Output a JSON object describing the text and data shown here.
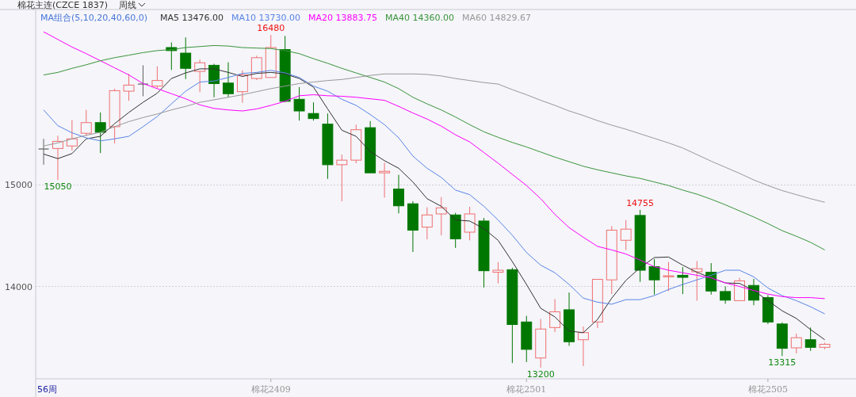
{
  "chart_data": {
    "type": "candlestick",
    "title": "棉花主连(CZCE 1837)",
    "subtitle": "周线",
    "legend_title": "MA组合(5,10,20,40,60,0)",
    "legend": "top left",
    "grid": "y",
    "ylim": [
      13090,
      16730
    ],
    "yticks": [
      14000,
      15000
    ],
    "categories": [
      null,
      null,
      null,
      null,
      null,
      null,
      null,
      null,
      null,
      null,
      null,
      null,
      null,
      null,
      null,
      null,
      "棉花2409",
      null,
      null,
      null,
      null,
      null,
      null,
      null,
      null,
      null,
      null,
      null,
      null,
      null,
      null,
      null,
      null,
      null,
      "棉花2501",
      null,
      null,
      null,
      null,
      null,
      null,
      null,
      null,
      null,
      null,
      null,
      null,
      null,
      null,
      null,
      null,
      "棉花2505",
      null,
      null,
      null,
      null
    ],
    "ohlc": [
      [
        15355,
        15455,
        15200,
        15355
      ],
      [
        15360,
        15485,
        15050,
        15430
      ],
      [
        15385,
        15640,
        15340,
        15455
      ],
      [
        15510,
        15740,
        15485,
        15615
      ],
      [
        15615,
        15715,
        15315,
        15520
      ],
      [
        15575,
        15950,
        15410,
        15930
      ],
      [
        15925,
        16095,
        15830,
        15985
      ],
      [
        15995,
        16180,
        15875,
        15995
      ],
      [
        15975,
        16170,
        15950,
        16030
      ],
      [
        16355,
        16405,
        16135,
        16325
      ],
      [
        16300,
        16455,
        16045,
        16150
      ],
      [
        16120,
        16235,
        15915,
        16205
      ],
      [
        16180,
        16195,
        15865,
        16000
      ],
      [
        16005,
        16210,
        15865,
        15900
      ],
      [
        15920,
        16130,
        15810,
        16085
      ],
      [
        16050,
        16275,
        16035,
        16255
      ],
      [
        16060,
        16480,
        16060,
        16355
      ],
      [
        16335,
        16470,
        15815,
        15825
      ],
      [
        15845,
        15965,
        15635,
        15730
      ],
      [
        15705,
        15815,
        15635,
        15655
      ],
      [
        15600,
        15705,
        15060,
        15200
      ],
      [
        15200,
        15300,
        14840,
        15245
      ],
      [
        15245,
        15595,
        15215,
        15545
      ],
      [
        15565,
        15630,
        15120,
        15120
      ],
      [
        15120,
        15220,
        14875,
        15135
      ],
      [
        14960,
        15100,
        14720,
        14795
      ],
      [
        14815,
        14840,
        14340,
        14555
      ],
      [
        14585,
        14780,
        14465,
        14705
      ],
      [
        14715,
        14880,
        14505,
        14775
      ],
      [
        14705,
        14725,
        14380,
        14470
      ],
      [
        14535,
        14785,
        14455,
        14715
      ],
      [
        14645,
        14675,
        13990,
        14155
      ],
      [
        14140,
        14240,
        14030,
        14160
      ],
      [
        14165,
        14185,
        13245,
        13625
      ],
      [
        13650,
        13710,
        13255,
        13380
      ],
      [
        13295,
        13680,
        13200,
        13580
      ],
      [
        13595,
        13875,
        13550,
        13750
      ],
      [
        13770,
        13940,
        13415,
        13455
      ],
      [
        13475,
        13605,
        13215,
        13545
      ],
      [
        13650,
        14070,
        13590,
        14070
      ],
      [
        14065,
        14595,
        13925,
        14555
      ],
      [
        14455,
        14655,
        14360,
        14565
      ],
      [
        14700,
        14755,
        14045,
        14160
      ],
      [
        14195,
        14270,
        13920,
        14065
      ],
      [
        14095,
        14240,
        13955,
        14105
      ],
      [
        14110,
        14190,
        13925,
        14090
      ],
      [
        14145,
        14250,
        13860,
        14175
      ],
      [
        14140,
        14230,
        13920,
        13955
      ],
      [
        13950,
        14000,
        13830,
        13865
      ],
      [
        13860,
        14085,
        13860,
        14055
      ],
      [
        14010,
        14075,
        13815,
        13865
      ],
      [
        13890,
        13915,
        13630,
        13650
      ],
      [
        13630,
        13645,
        13315,
        13390
      ],
      [
        13395,
        13535,
        13340,
        13495
      ],
      [
        13475,
        13595,
        13365,
        13400
      ],
      [
        13400,
        13445,
        13380,
        13430
      ]
    ],
    "colors": [
      "#606060",
      "#f07070",
      "#f07070",
      "#f07070",
      "#007700",
      "#f07070",
      "#f07070",
      "#606060",
      "#f07070",
      "#007700",
      "#007700",
      "#f07070",
      "#007700",
      "#007700",
      "#f07070",
      "#f07070",
      "#f07070",
      "#007700",
      "#007700",
      "#007700",
      "#007700",
      "#f07070",
      "#f07070",
      "#007700",
      "#f07070",
      "#007700",
      "#007700",
      "#f07070",
      "#f07070",
      "#007700",
      "#f07070",
      "#007700",
      "#f07070",
      "#007700",
      "#007700",
      "#f07070",
      "#f07070",
      "#007700",
      "#f07070",
      "#f07070",
      "#f07070",
      "#f07070",
      "#007700",
      "#007700",
      "#f07070",
      "#007700",
      "#f07070",
      "#007700",
      "#007700",
      "#f07070",
      "#007700",
      "#007700",
      "#007700",
      "#f07070",
      "#007700",
      "#f07070"
    ],
    "series": [
      {
        "name": "MA5 13476.00",
        "type": "line",
        "color": "#333333",
        "values": [
          15305,
          15260,
          15310,
          15455,
          15480,
          15605,
          15715,
          15815,
          15905,
          16050,
          16105,
          16145,
          16145,
          16110,
          16070,
          16100,
          16110,
          16095,
          16050,
          15965,
          15750,
          15540,
          15480,
          15330,
          15240,
          15165,
          15030,
          14865,
          14790,
          14655,
          14645,
          14570,
          14455,
          14245,
          14020,
          13785,
          13700,
          13560,
          13545,
          13675,
          13885,
          14060,
          14185,
          14285,
          14290,
          14210,
          14140,
          14085,
          14035,
          14030,
          13960,
          13860,
          13760,
          13685,
          13575,
          13475
        ]
      },
      {
        "name": "MA10 13730.00",
        "type": "line",
        "color": "#5a84e6",
        "values": [
          15740,
          15585,
          15515,
          15465,
          15435,
          15455,
          15480,
          15575,
          15675,
          15800,
          15925,
          16015,
          16025,
          16060,
          16100,
          16110,
          16130,
          16105,
          16060,
          15975,
          15925,
          15845,
          15785,
          15695,
          15595,
          15465,
          15285,
          15165,
          15075,
          14950,
          14905,
          14790,
          14655,
          14505,
          14335,
          14210,
          14135,
          14020,
          13885,
          13845,
          13825,
          13870,
          13870,
          13910,
          13970,
          14020,
          14065,
          14110,
          14160,
          14160,
          14095,
          13985,
          13910,
          13860,
          13800,
          13730
        ]
      },
      {
        "name": "MA20 13883.75",
        "type": "line",
        "color": "#ff00ff",
        "values": [
          16510,
          16435,
          16360,
          16295,
          16225,
          16155,
          16085,
          16000,
          15950,
          15900,
          15850,
          15790,
          15755,
          15740,
          15730,
          15750,
          15785,
          15825,
          15880,
          15890,
          15880,
          15875,
          15865,
          15850,
          15835,
          15775,
          15710,
          15650,
          15580,
          15495,
          15425,
          15320,
          15215,
          15105,
          14995,
          14865,
          14710,
          14580,
          14485,
          14395,
          14360,
          14320,
          14260,
          14195,
          14160,
          14135,
          14110,
          14085,
          14035,
          14000,
          13960,
          13925,
          13900,
          13890,
          13890,
          13880
        ]
      },
      {
        "name": "MA40 14360.00",
        "type": "line",
        "color": "#3a943a",
        "values": [
          16085,
          16110,
          16150,
          16185,
          16225,
          16255,
          16280,
          16305,
          16325,
          16335,
          16355,
          16365,
          16375,
          16370,
          16355,
          16350,
          16345,
          16325,
          16295,
          16245,
          16200,
          16150,
          16105,
          16060,
          16015,
          15950,
          15865,
          15800,
          15740,
          15670,
          15595,
          15525,
          15470,
          15420,
          15375,
          15325,
          15275,
          15230,
          15185,
          15150,
          15120,
          15090,
          15065,
          15030,
          14995,
          14950,
          14910,
          14860,
          14805,
          14745,
          14685,
          14620,
          14550,
          14495,
          14435,
          14360
        ]
      },
      {
        "name": "MA60 14829.67",
        "type": "line",
        "color": "#999999",
        "values": [
          15385,
          15415,
          15455,
          15490,
          15520,
          15575,
          15625,
          15665,
          15700,
          15740,
          15775,
          15815,
          15840,
          15865,
          15890,
          15920,
          15950,
          15975,
          16000,
          16015,
          16030,
          16040,
          16060,
          16080,
          16095,
          16095,
          16095,
          16090,
          16075,
          16050,
          16030,
          16010,
          15995,
          15940,
          15890,
          15835,
          15785,
          15730,
          15685,
          15635,
          15590,
          15550,
          15505,
          15460,
          15415,
          15365,
          15300,
          15235,
          15175,
          15115,
          15050,
          14995,
          14945,
          14905,
          14865,
          14830
        ]
      }
    ],
    "annotations": [
      {
        "text": "16480",
        "y": 16480
      },
      {
        "text": "15050",
        "y": 15050
      },
      {
        "text": "14755",
        "y": 14755
      },
      {
        "text": "13200",
        "y": 13200
      },
      {
        "text": "13315",
        "y": 13315
      },
      "56周"
    ]
  }
}
